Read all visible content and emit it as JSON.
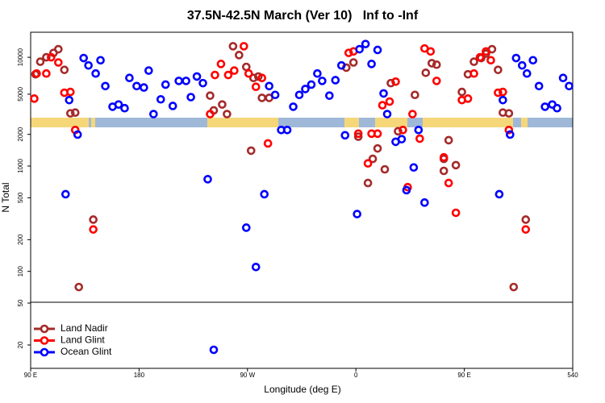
{
  "chart_data": {
    "type": "scatter",
    "title": "37.5N-42.5N March (Ver 10)   Inf to -Inf",
    "x_label": "Longitude (deg E)",
    "y_label": "N Total",
    "xlim": [
      90,
      540
    ],
    "xticks": [
      {
        "value": 90,
        "label": "90 E"
      },
      180,
      {
        "value": 270,
        "label": "90 W"
      },
      {
        "value": 360,
        "label": "0"
      },
      {
        "value": 450,
        "label": "90 E"
      },
      540
    ],
    "y_segments": [
      {
        "scale": "log",
        "ylim": [
          12,
          2250
        ],
        "yticks": [
          20,
          50,
          100,
          200,
          500,
          1000,
          2000
        ]
      },
      {
        "scale": "linear",
        "ylim": [
          2250,
          13400
        ],
        "yticks": [
          5000,
          10000
        ]
      }
    ],
    "legend": "bottom-left",
    "series": [
      {
        "name": "Land Nadir",
        "color": "#a52a2a",
        "x": [
          94,
          98,
          103,
          109,
          113,
          118,
          123,
          127,
          142,
          130,
          239,
          242,
          249,
          253,
          258,
          263,
          269,
          273,
          275,
          279,
          282,
          288,
          352,
          358,
          362,
          370,
          374,
          378,
          384,
          389,
          395,
          409,
          418,
          423,
          427,
          433,
          437,
          433,
          443,
          448,
          453,
          458,
          464,
          468,
          473,
          478,
          482,
          487,
          491,
          501
        ],
        "values": [
          7700,
          9400,
          10000,
          10600,
          11100,
          8300,
          2400,
          2500,
          310,
          71,
          4800,
          2800,
          3600,
          2300,
          11500,
          10300,
          8700,
          1400,
          7200,
          7400,
          4500,
          4500,
          8600,
          9300,
          1900,
          690,
          1170,
          1470,
          930,
          6500,
          2140,
          4900,
          7900,
          9200,
          9000,
          1170,
          1760,
          900,
          1020,
          5300,
          7700,
          9400,
          9900,
          10500,
          11100,
          8300,
          2500,
          2400,
          71,
          310
        ]
      },
      {
        "name": "Land Glint",
        "color": "#ff0000",
        "x": [
          93,
          95,
          103,
          107,
          113,
          118,
          123,
          127,
          142,
          239,
          243,
          248,
          254,
          259,
          267,
          271,
          277,
          282,
          287,
          354,
          358,
          362,
          370,
          373,
          378,
          382,
          388,
          393,
          399,
          403,
          407,
          413,
          417,
          422,
          427,
          433,
          437,
          443,
          448,
          453,
          458,
          463,
          468,
          472,
          478,
          482,
          487,
          501
        ],
        "values": [
          4400,
          7800,
          7800,
          10000,
          9300,
          5200,
          5300,
          2200,
          250,
          2300,
          7600,
          9100,
          7600,
          8200,
          11500,
          7800,
          6000,
          7200,
          1640,
          10600,
          10800,
          2030,
          1060,
          2030,
          2030,
          3500,
          4000,
          6700,
          2200,
          630,
          2300,
          1820,
          11200,
          10800,
          6800,
          1210,
          690,
          360,
          4200,
          4400,
          7800,
          10000,
          10800,
          9600,
          5200,
          5300,
          2200,
          250
        ]
      },
      {
        "name": "Ocean Glint",
        "color": "#0000ff",
        "x": [
          119,
          122,
          129,
          134,
          138,
          144,
          148,
          152,
          158,
          163,
          168,
          172,
          178,
          184,
          188,
          192,
          198,
          202,
          208,
          213,
          219,
          223,
          228,
          233,
          237,
          242,
          269,
          277,
          284,
          288,
          293,
          298,
          303,
          308,
          313,
          318,
          323,
          328,
          332,
          338,
          343,
          348,
          351,
          361,
          363,
          368,
          373,
          378,
          383,
          386,
          393,
          398,
          402,
          408,
          412,
          417,
          479,
          482,
          488,
          493,
          498,
          502,
          507,
          512,
          517,
          523,
          527,
          532,
          537
        ],
        "values": [
          540,
          4200,
          1990,
          9900,
          8900,
          7800,
          9600,
          6100,
          3300,
          3600,
          3100,
          7200,
          6100,
          5900,
          8200,
          2300,
          4300,
          6300,
          3400,
          6800,
          6800,
          4600,
          7400,
          6500,
          750,
          18,
          260,
          110,
          540,
          6100,
          4900,
          2200,
          2200,
          3300,
          4900,
          5700,
          6300,
          7800,
          6800,
          4800,
          6900,
          8900,
          1960,
          350,
          11100,
          11800,
          9100,
          11000,
          5100,
          2300,
          1700,
          1800,
          590,
          970,
          2200,
          450,
          540,
          4200,
          1990,
          9900,
          8900,
          7800,
          9600,
          6100,
          3300,
          3600,
          3100,
          7200,
          6100
        ]
      }
    ]
  }
}
